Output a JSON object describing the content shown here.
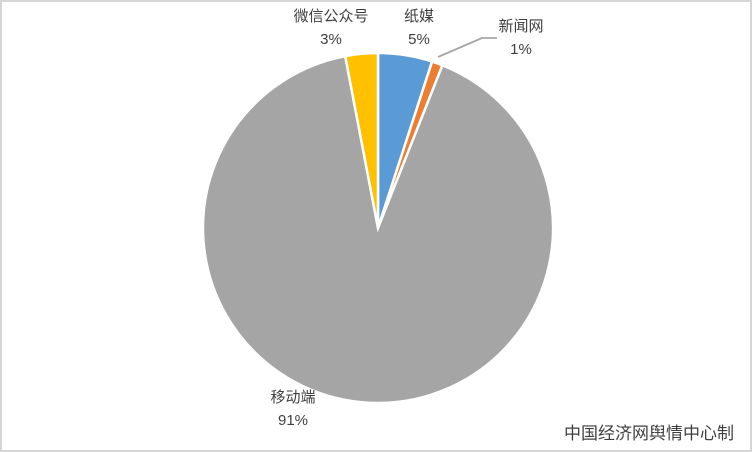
{
  "page": {
    "background": "#ffffff",
    "frame_border_color": "#d6d6d6"
  },
  "chart_data": {
    "type": "pie",
    "title": "",
    "legend_position": "none",
    "direction": "clockwise",
    "start_angle_deg": 0,
    "labels_shown": true,
    "label_color": "#3f3f3f",
    "leader_line_color": "#A6A6A6",
    "categories": [
      "纸媒",
      "新闻网",
      "移动端",
      "微信公众号"
    ],
    "values": [
      5,
      1,
      91,
      3
    ],
    "segments": [
      {
        "name": "纸媒",
        "value": 5,
        "pct_label": "5%",
        "color": "#5B9BD5"
      },
      {
        "name": "新闻网",
        "value": 1,
        "pct_label": "1%",
        "color": "#ED7D31"
      },
      {
        "name": "移动端",
        "value": 91,
        "pct_label": "91%",
        "color": "#A5A5A5"
      },
      {
        "name": "微信公众号",
        "value": 3,
        "pct_label": "3%",
        "color": "#FFC000"
      }
    ]
  },
  "credit": {
    "text": "中国经济网舆情中心制"
  }
}
